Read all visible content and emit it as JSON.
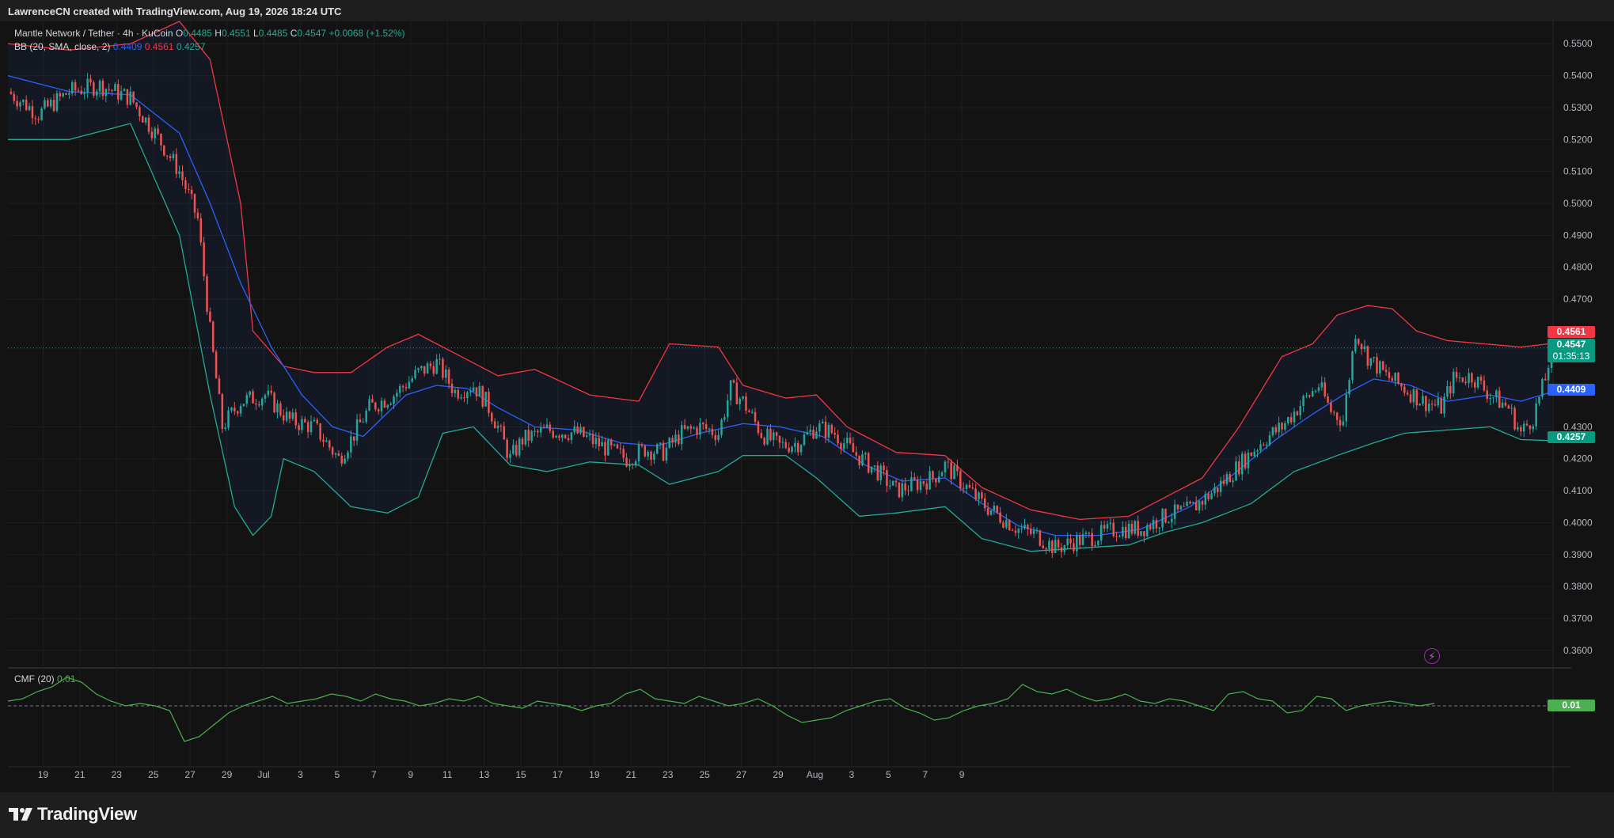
{
  "header": {
    "attribution": "LawrenceCN created with TradingView.com, Aug 19, 2026 18:24 UTC"
  },
  "legend": {
    "symbol": "Mantle Network / Tether · 4h · KuCoin",
    "o_label": "O",
    "o_value": "0.4485",
    "h_label": "H",
    "h_value": "0.4551",
    "l_label": "L",
    "l_value": "0.4485",
    "c_label": "C",
    "c_value": "0.4547",
    "change": "+0.0068 (+1.52%)",
    "bb_label": "BB (20, SMA, close, 2)",
    "bb_basis": "0.4409",
    "bb_upper": "0.4561",
    "bb_lower": "0.4257"
  },
  "cmf_legend": {
    "label": "CMF (20)",
    "value": "0.01"
  },
  "price_tags": {
    "upper": "0.4561",
    "last": "0.4547",
    "countdown": "01:35:13",
    "basis": "0.4409",
    "lower": "0.4257",
    "cmf": "0.01"
  },
  "colors": {
    "up": "#26a69a",
    "down": "#ef5350",
    "bb_basis": "#2962ff",
    "bb_upper": "#f23645",
    "bb_lower": "#22ab94",
    "cmf": "#4caf50",
    "grid": "#1f1f1f"
  },
  "footer": {
    "brand": "TradingView"
  },
  "chart_data": {
    "type": "candlestick",
    "interval": "4h",
    "grid": true,
    "ylim": [
      0.355,
      0.557
    ],
    "yticks": [
      "0.5500",
      "0.5400",
      "0.5300",
      "0.5200",
      "0.5100",
      "0.5000",
      "0.4900",
      "0.4800",
      "0.4700",
      "0.4300",
      "0.4200",
      "0.4100",
      "0.4000",
      "0.3900",
      "0.3800",
      "0.3700",
      "0.3600"
    ],
    "xticks": [
      "19",
      "21",
      "23",
      "25",
      "27",
      "29",
      "Jul",
      "3",
      "5",
      "7",
      "9",
      "11",
      "13",
      "15",
      "17",
      "19",
      "21",
      "23",
      "25",
      "27",
      "29",
      "Aug",
      "3",
      "5",
      "7",
      "9"
    ],
    "close_path": [
      [
        0,
        0.535
      ],
      [
        10,
        0.528
      ],
      [
        20,
        0.535
      ],
      [
        30,
        0.537
      ],
      [
        40,
        0.533
      ],
      [
        48,
        0.522
      ],
      [
        56,
        0.51
      ],
      [
        62,
        0.495
      ],
      [
        66,
        0.46
      ],
      [
        70,
        0.43
      ],
      [
        76,
        0.438
      ],
      [
        84,
        0.44
      ],
      [
        92,
        0.432
      ],
      [
        100,
        0.43
      ],
      [
        108,
        0.42
      ],
      [
        112,
        0.426
      ],
      [
        118,
        0.436
      ],
      [
        126,
        0.44
      ],
      [
        134,
        0.447
      ],
      [
        140,
        0.45
      ],
      [
        146,
        0.441
      ],
      [
        152,
        0.443
      ],
      [
        156,
        0.438
      ],
      [
        160,
        0.43
      ],
      [
        164,
        0.42
      ],
      [
        168,
        0.426
      ],
      [
        176,
        0.429
      ],
      [
        186,
        0.428
      ],
      [
        194,
        0.424
      ],
      [
        202,
        0.42
      ],
      [
        208,
        0.423
      ],
      [
        214,
        0.422
      ],
      [
        220,
        0.428
      ],
      [
        226,
        0.43
      ],
      [
        232,
        0.428
      ],
      [
        236,
        0.442
      ],
      [
        240,
        0.438
      ],
      [
        246,
        0.428
      ],
      [
        252,
        0.424
      ],
      [
        258,
        0.425
      ],
      [
        264,
        0.43
      ],
      [
        270,
        0.428
      ],
      [
        276,
        0.422
      ],
      [
        284,
        0.416
      ],
      [
        290,
        0.41
      ],
      [
        296,
        0.412
      ],
      [
        302,
        0.414
      ],
      [
        306,
        0.418
      ],
      [
        312,
        0.412
      ],
      [
        318,
        0.406
      ],
      [
        324,
        0.402
      ],
      [
        330,
        0.398
      ],
      [
        336,
        0.396
      ],
      [
        342,
        0.392
      ],
      [
        348,
        0.394
      ],
      [
        356,
        0.396
      ],
      [
        362,
        0.398
      ],
      [
        370,
        0.398
      ],
      [
        378,
        0.402
      ],
      [
        386,
        0.404
      ],
      [
        394,
        0.41
      ],
      [
        402,
        0.418
      ],
      [
        410,
        0.426
      ],
      [
        416,
        0.43
      ],
      [
        422,
        0.437
      ],
      [
        428,
        0.443
      ],
      [
        432,
        0.435
      ],
      [
        436,
        0.432
      ],
      [
        440,
        0.46
      ],
      [
        444,
        0.452
      ],
      [
        450,
        0.446
      ],
      [
        456,
        0.442
      ],
      [
        462,
        0.438
      ],
      [
        468,
        0.436
      ],
      [
        472,
        0.445
      ],
      [
        478,
        0.446
      ],
      [
        484,
        0.44
      ],
      [
        490,
        0.436
      ],
      [
        494,
        0.428
      ],
      [
        498,
        0.433
      ],
      [
        502,
        0.445
      ],
      [
        504,
        0.4547
      ]
    ],
    "bb_basis_path": [
      [
        0,
        0.54
      ],
      [
        20,
        0.535
      ],
      [
        40,
        0.534
      ],
      [
        56,
        0.522
      ],
      [
        66,
        0.5
      ],
      [
        76,
        0.475
      ],
      [
        86,
        0.455
      ],
      [
        96,
        0.44
      ],
      [
        106,
        0.43
      ],
      [
        116,
        0.427
      ],
      [
        130,
        0.44
      ],
      [
        140,
        0.443
      ],
      [
        150,
        0.442
      ],
      [
        160,
        0.436
      ],
      [
        172,
        0.43
      ],
      [
        186,
        0.429
      ],
      [
        200,
        0.425
      ],
      [
        212,
        0.424
      ],
      [
        226,
        0.428
      ],
      [
        240,
        0.431
      ],
      [
        252,
        0.43
      ],
      [
        266,
        0.427
      ],
      [
        280,
        0.418
      ],
      [
        292,
        0.413
      ],
      [
        306,
        0.414
      ],
      [
        318,
        0.406
      ],
      [
        330,
        0.399
      ],
      [
        342,
        0.396
      ],
      [
        356,
        0.396
      ],
      [
        370,
        0.398
      ],
      [
        386,
        0.405
      ],
      [
        400,
        0.415
      ],
      [
        414,
        0.426
      ],
      [
        426,
        0.434
      ],
      [
        436,
        0.44
      ],
      [
        446,
        0.445
      ],
      [
        458,
        0.443
      ],
      [
        470,
        0.438
      ],
      [
        484,
        0.44
      ],
      [
        494,
        0.438
      ],
      [
        504,
        0.4409
      ]
    ],
    "bb_upper_path": [
      [
        0,
        0.55
      ],
      [
        20,
        0.548
      ],
      [
        40,
        0.55
      ],
      [
        56,
        0.557
      ],
      [
        66,
        0.545
      ],
      [
        76,
        0.5
      ],
      [
        80,
        0.46
      ],
      [
        90,
        0.449
      ],
      [
        100,
        0.447
      ],
      [
        112,
        0.447
      ],
      [
        124,
        0.455
      ],
      [
        134,
        0.459
      ],
      [
        146,
        0.453
      ],
      [
        160,
        0.446
      ],
      [
        172,
        0.448
      ],
      [
        190,
        0.44
      ],
      [
        206,
        0.438
      ],
      [
        216,
        0.456
      ],
      [
        232,
        0.455
      ],
      [
        240,
        0.443
      ],
      [
        254,
        0.439
      ],
      [
        264,
        0.44
      ],
      [
        274,
        0.43
      ],
      [
        290,
        0.422
      ],
      [
        306,
        0.421
      ],
      [
        318,
        0.411
      ],
      [
        334,
        0.404
      ],
      [
        350,
        0.401
      ],
      [
        366,
        0.402
      ],
      [
        378,
        0.408
      ],
      [
        390,
        0.414
      ],
      [
        402,
        0.43
      ],
      [
        416,
        0.452
      ],
      [
        426,
        0.456
      ],
      [
        434,
        0.465
      ],
      [
        444,
        0.468
      ],
      [
        452,
        0.467
      ],
      [
        460,
        0.46
      ],
      [
        470,
        0.457
      ],
      [
        482,
        0.456
      ],
      [
        494,
        0.455
      ],
      [
        504,
        0.4561
      ]
    ],
    "bb_lower_path": [
      [
        0,
        0.52
      ],
      [
        20,
        0.52
      ],
      [
        40,
        0.525
      ],
      [
        56,
        0.49
      ],
      [
        66,
        0.44
      ],
      [
        74,
        0.405
      ],
      [
        80,
        0.396
      ],
      [
        86,
        0.402
      ],
      [
        90,
        0.42
      ],
      [
        100,
        0.416
      ],
      [
        112,
        0.405
      ],
      [
        124,
        0.403
      ],
      [
        134,
        0.408
      ],
      [
        142,
        0.428
      ],
      [
        152,
        0.43
      ],
      [
        164,
        0.418
      ],
      [
        176,
        0.416
      ],
      [
        190,
        0.419
      ],
      [
        206,
        0.418
      ],
      [
        216,
        0.412
      ],
      [
        232,
        0.416
      ],
      [
        240,
        0.421
      ],
      [
        254,
        0.421
      ],
      [
        264,
        0.414
      ],
      [
        278,
        0.402
      ],
      [
        290,
        0.403
      ],
      [
        306,
        0.405
      ],
      [
        318,
        0.395
      ],
      [
        334,
        0.391
      ],
      [
        350,
        0.392
      ],
      [
        366,
        0.393
      ],
      [
        378,
        0.397
      ],
      [
        390,
        0.4
      ],
      [
        406,
        0.406
      ],
      [
        420,
        0.416
      ],
      [
        434,
        0.421
      ],
      [
        446,
        0.425
      ],
      [
        456,
        0.428
      ],
      [
        470,
        0.429
      ],
      [
        484,
        0.43
      ],
      [
        494,
        0.426
      ],
      [
        504,
        0.4257
      ]
    ],
    "cmf_series": [
      0.02,
      0.03,
      0.06,
      0.08,
      0.12,
      0.1,
      0.05,
      0.02,
      0.0,
      0.01,
      0.0,
      -0.02,
      -0.15,
      -0.13,
      -0.08,
      -0.03,
      0.0,
      0.02,
      0.04,
      0.01,
      0.02,
      0.03,
      0.05,
      0.04,
      0.02,
      0.05,
      0.03,
      0.02,
      0.0,
      0.01,
      0.03,
      0.02,
      0.04,
      0.01,
      0.0,
      -0.01,
      0.02,
      0.01,
      0.0,
      -0.02,
      0.0,
      0.01,
      0.05,
      0.07,
      0.03,
      0.02,
      0.01,
      0.04,
      0.02,
      0.0,
      0.01,
      0.03,
      0.0,
      -0.04,
      -0.07,
      -0.06,
      -0.05,
      -0.02,
      0.0,
      0.02,
      0.03,
      -0.01,
      -0.03,
      -0.06,
      -0.05,
      -0.02,
      0.0,
      0.01,
      0.03,
      0.09,
      0.06,
      0.05,
      0.07,
      0.04,
      0.02,
      0.03,
      0.05,
      0.02,
      0.01,
      0.03,
      0.02,
      0.0,
      -0.02,
      0.05,
      0.06,
      0.03,
      0.02,
      -0.03,
      -0.02,
      0.04,
      0.03,
      -0.02,
      0.0,
      0.01,
      0.02,
      0.01,
      0.0,
      0.01
    ]
  }
}
